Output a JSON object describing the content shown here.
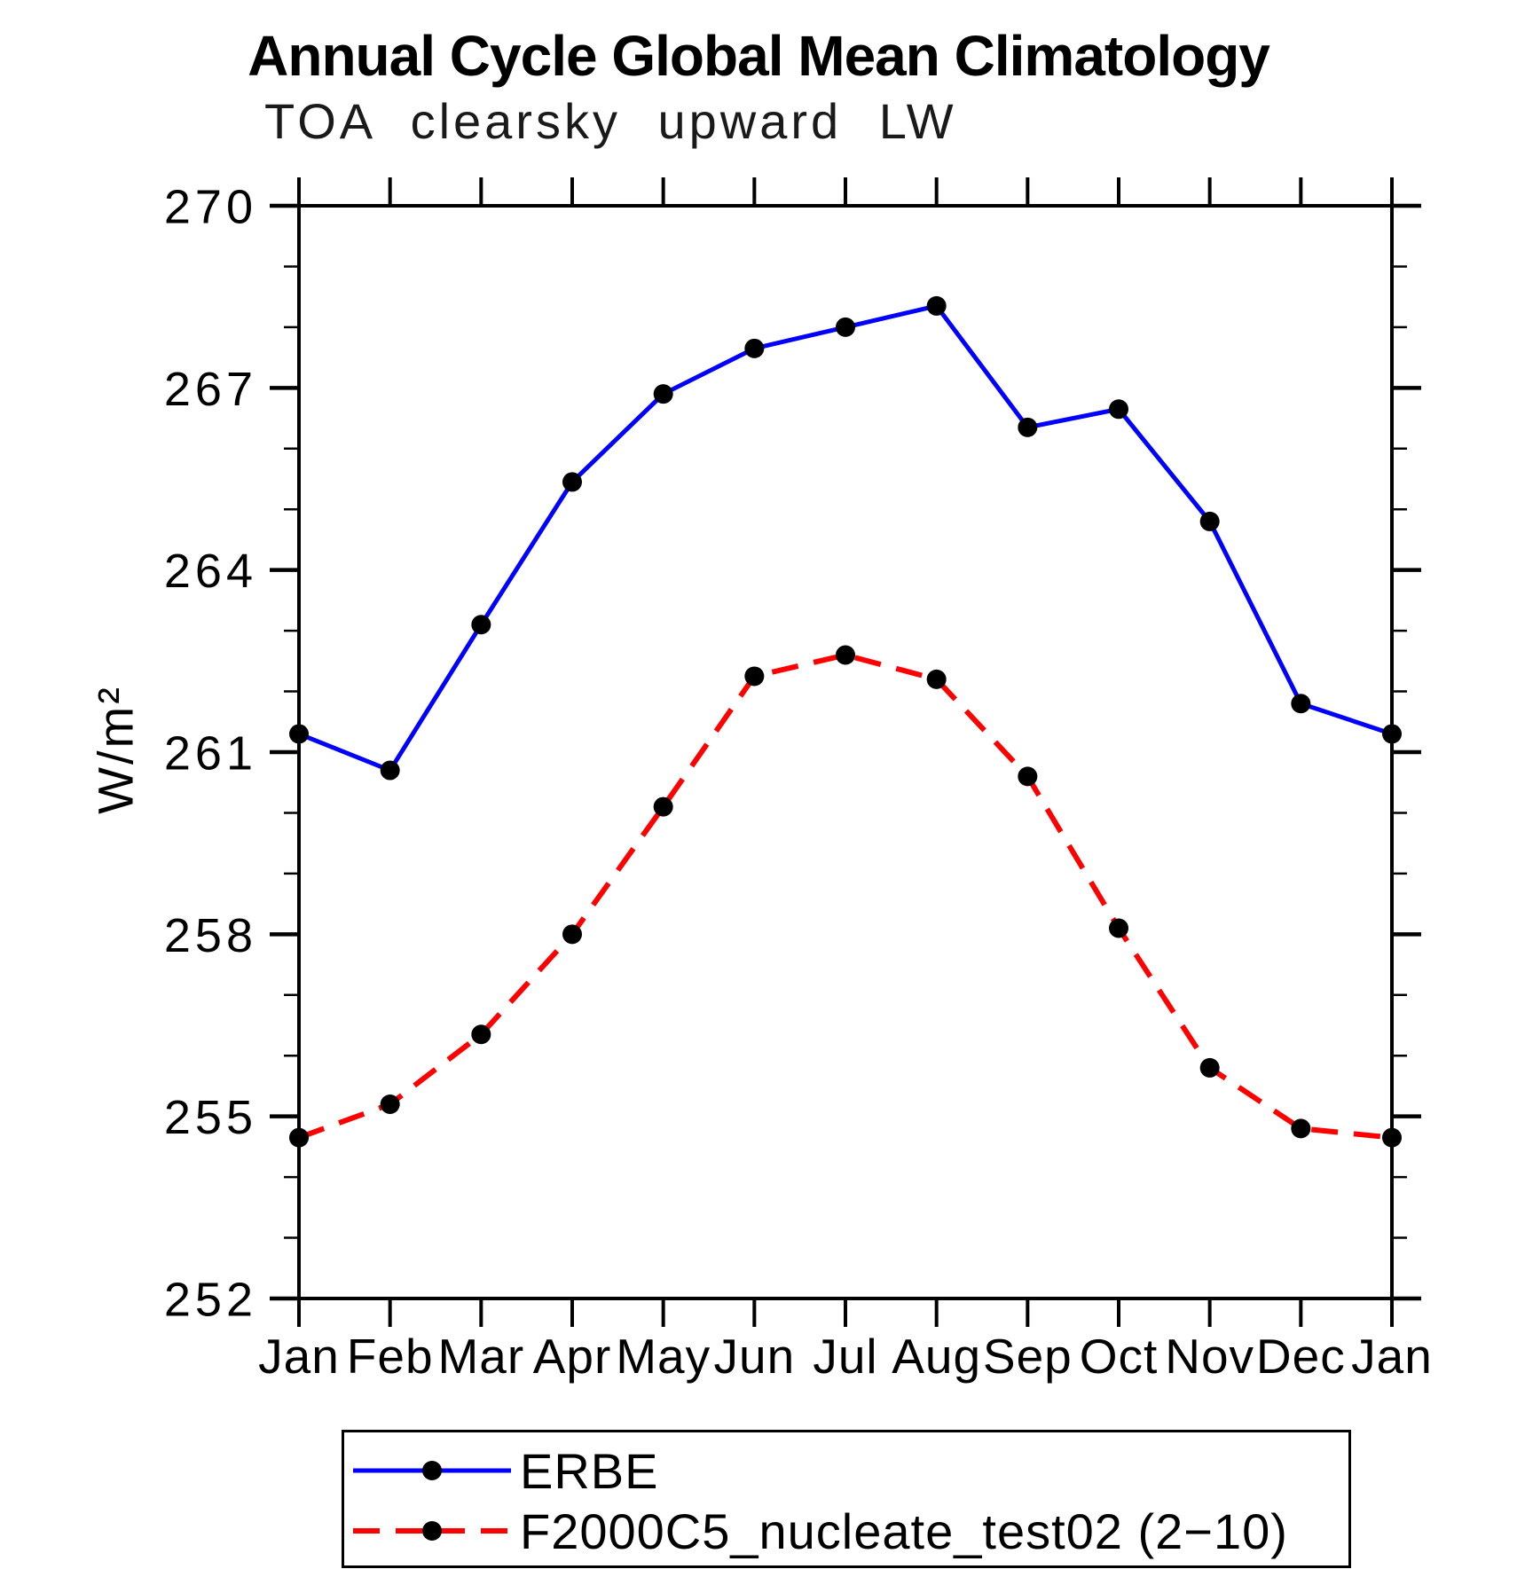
{
  "chart_data": {
    "type": "line",
    "title": "Annual Cycle Global Mean Climatology",
    "subtitle": "TOA clearsky upward LW",
    "xlabel": "",
    "ylabel": "W/m²",
    "ylim": [
      252,
      270
    ],
    "yticks": [
      252,
      255,
      258,
      261,
      264,
      267,
      270
    ],
    "ytick_minor_step": 1,
    "grid": false,
    "legend_position": "bottom",
    "categories": [
      "Jan",
      "Feb",
      "Mar",
      "Apr",
      "May",
      "Jun",
      "Jul",
      "Aug",
      "Sep",
      "Oct",
      "Nov",
      "Dec",
      "Jan"
    ],
    "marker": {
      "shape": "circle",
      "color": "#000000"
    },
    "axis_color": "#000000",
    "series": [
      {
        "name": "ERBE",
        "color": "#0000ff",
        "line_style": "solid",
        "values": [
          261.3,
          260.7,
          263.1,
          265.45,
          266.9,
          267.65,
          268.0,
          268.35,
          266.35,
          266.65,
          264.8,
          261.8,
          261.3
        ]
      },
      {
        "name": "F2000C5_nucleate_test02 (2−10)",
        "color": "#ff0000",
        "line_style": "dashed",
        "values": [
          254.65,
          255.2,
          256.35,
          258.0,
          260.1,
          262.25,
          262.6,
          262.2,
          260.6,
          258.1,
          255.8,
          254.8,
          254.65
        ]
      }
    ]
  }
}
